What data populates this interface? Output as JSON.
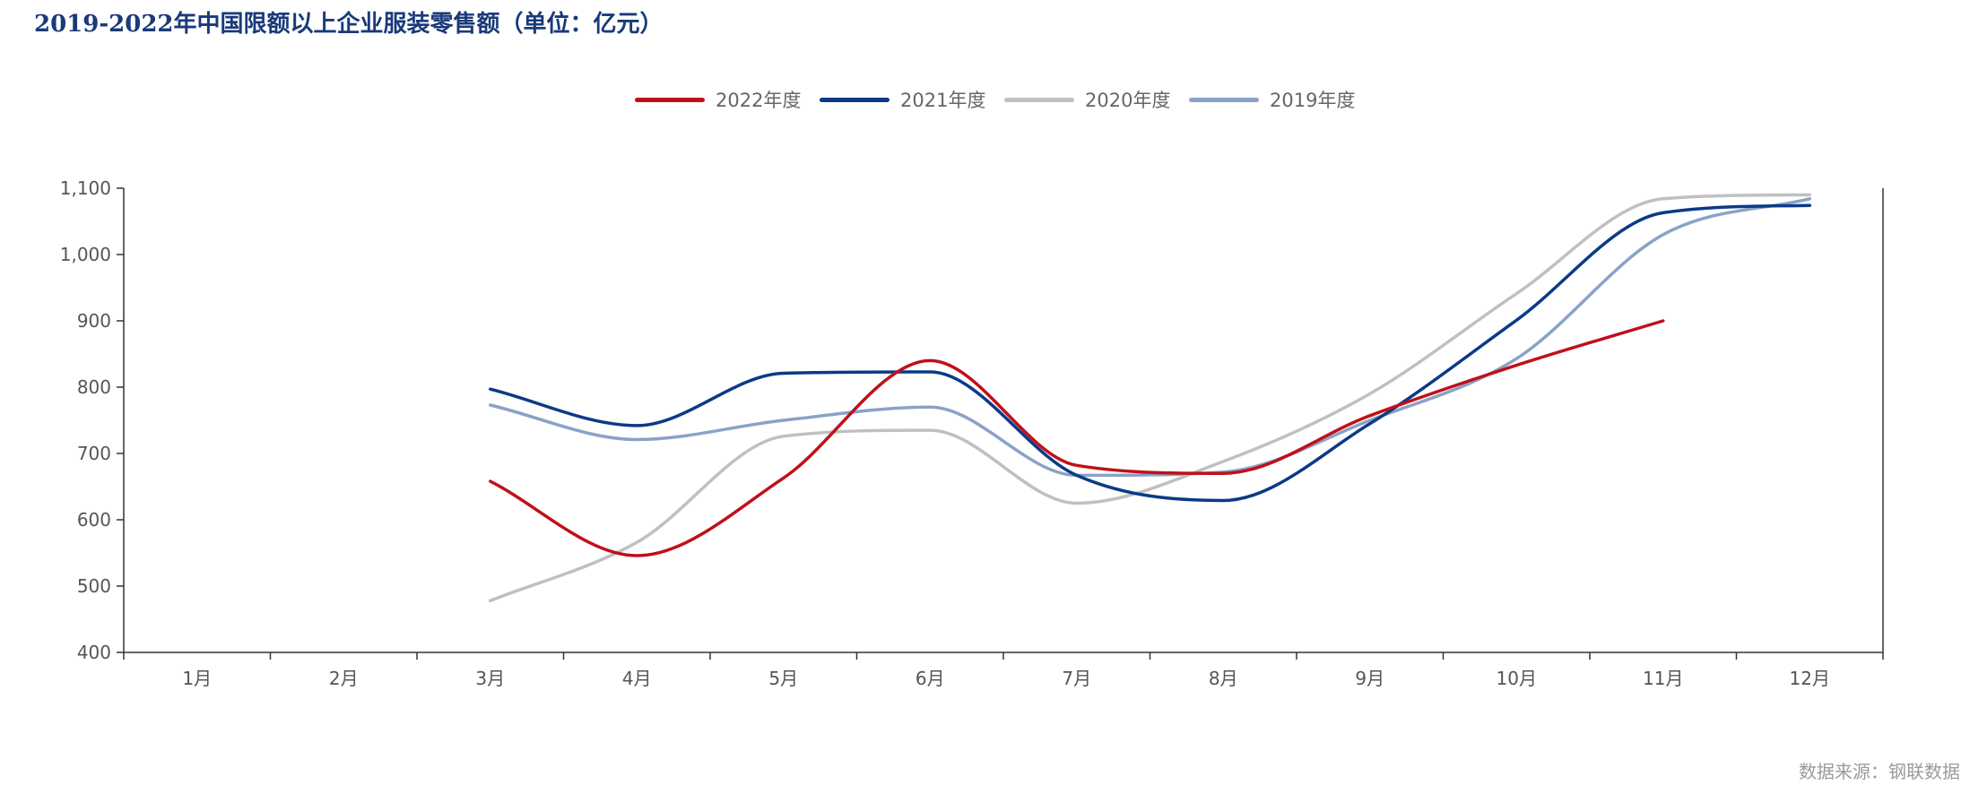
{
  "chart_data": {
    "type": "line",
    "title": "2019-2022年中国限额以上企业服装零售额（单位：亿元）",
    "source": "数据来源：钢联数据",
    "categories": [
      "1月",
      "2月",
      "3月",
      "4月",
      "5月",
      "6月",
      "7月",
      "8月",
      "9月",
      "10月",
      "11月",
      "12月"
    ],
    "y_tick_labels": [
      "400",
      "500",
      "600",
      "700",
      "800",
      "900",
      "1,000",
      "1,100"
    ],
    "ylim": [
      400,
      1100
    ],
    "xlabel": "",
    "ylabel": "",
    "legend_position": "top-center",
    "series": [
      {
        "name": "2022年度",
        "color": "#c0101a",
        "values": [
          null,
          null,
          658,
          546,
          663,
          840,
          682,
          670,
          757,
          833,
          900,
          null
        ]
      },
      {
        "name": "2021年度",
        "color": "#0b3a86",
        "values": [
          null,
          null,
          797,
          742,
          821,
          823,
          667,
          629,
          745,
          901,
          1063,
          1074
        ]
      },
      {
        "name": "2020年度",
        "color": "#c0c0c0",
        "values": [
          null,
          null,
          478,
          566,
          726,
          735,
          625,
          688,
          790,
          941,
          1084,
          1090
        ]
      },
      {
        "name": "2019年度",
        "color": "#8aa2c8",
        "values": [
          null,
          null,
          773,
          721,
          750,
          770,
          667,
          672,
          750,
          843,
          1030,
          1084
        ]
      }
    ]
  }
}
